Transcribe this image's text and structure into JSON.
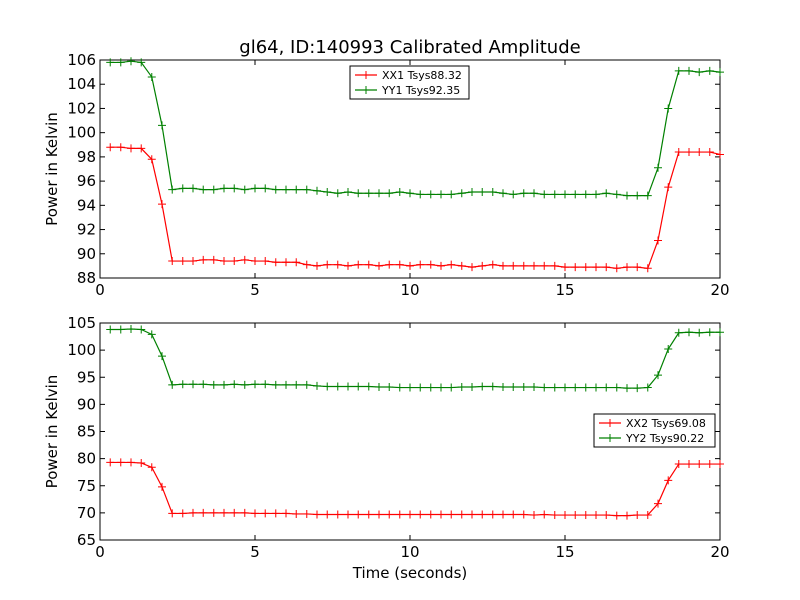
{
  "figure": {
    "title": "gl64, ID:140993 Calibrated Amplitude",
    "xlabel": "Time (seconds)"
  },
  "chart_data": [
    {
      "type": "line",
      "title": "gl64, ID:140993 Calibrated Amplitude",
      "xlabel": "",
      "ylabel": "Power in Kelvin",
      "xlim": [
        0,
        20
      ],
      "ylim": [
        88,
        106
      ],
      "xticks": [
        0,
        5,
        10,
        15,
        20
      ],
      "yticks": [
        88,
        90,
        92,
        94,
        96,
        98,
        100,
        102,
        104,
        106
      ],
      "legend_position": "top-center",
      "grid": false,
      "x": [
        0.33,
        0.67,
        1.0,
        1.33,
        1.67,
        2.0,
        2.33,
        2.67,
        3.0,
        3.33,
        3.67,
        4.0,
        4.33,
        4.67,
        5.0,
        5.33,
        5.67,
        6.0,
        6.33,
        6.67,
        7.0,
        7.33,
        7.67,
        8.0,
        8.33,
        8.67,
        9.0,
        9.33,
        9.67,
        10.0,
        10.33,
        10.67,
        11.0,
        11.33,
        11.67,
        12.0,
        12.33,
        12.67,
        13.0,
        13.33,
        13.67,
        14.0,
        14.33,
        14.67,
        15.0,
        15.33,
        15.67,
        16.0,
        16.33,
        16.67,
        17.0,
        17.33,
        17.67,
        18.0,
        18.33,
        18.67,
        19.0,
        19.33,
        19.67,
        20.0
      ],
      "series": [
        {
          "name": "XX1 Tsys88.32",
          "color": "#ff0000",
          "values": [
            98.8,
            98.8,
            98.7,
            98.7,
            97.8,
            94.1,
            89.4,
            89.4,
            89.4,
            89.5,
            89.5,
            89.4,
            89.4,
            89.5,
            89.4,
            89.4,
            89.3,
            89.3,
            89.3,
            89.1,
            89.0,
            89.1,
            89.1,
            89.0,
            89.1,
            89.1,
            89.0,
            89.1,
            89.1,
            89.0,
            89.1,
            89.1,
            89.0,
            89.1,
            89.0,
            88.9,
            89.0,
            89.1,
            89.0,
            89.0,
            89.0,
            89.0,
            89.0,
            89.0,
            88.9,
            88.9,
            88.9,
            88.9,
            88.9,
            88.8,
            88.9,
            88.9,
            88.8,
            91.1,
            95.5,
            98.4,
            98.4,
            98.4,
            98.4,
            98.2
          ]
        },
        {
          "name": "YY1 Tsys92.35",
          "color": "#008000",
          "values": [
            105.8,
            105.8,
            105.9,
            105.8,
            104.6,
            100.6,
            95.3,
            95.4,
            95.4,
            95.3,
            95.3,
            95.4,
            95.4,
            95.3,
            95.4,
            95.4,
            95.3,
            95.3,
            95.3,
            95.3,
            95.2,
            95.1,
            95.0,
            95.1,
            95.0,
            95.0,
            95.0,
            95.0,
            95.1,
            95.0,
            94.9,
            94.9,
            94.9,
            94.9,
            95.0,
            95.1,
            95.1,
            95.1,
            95.0,
            94.9,
            95.0,
            95.0,
            94.9,
            94.9,
            94.9,
            94.9,
            94.9,
            94.9,
            95.0,
            94.9,
            94.8,
            94.8,
            94.8,
            97.1,
            102.0,
            105.1,
            105.1,
            105.0,
            105.1,
            105.0
          ]
        }
      ]
    },
    {
      "type": "line",
      "title": "",
      "xlabel": "Time (seconds)",
      "ylabel": "Power in Kelvin",
      "xlim": [
        0,
        20
      ],
      "ylim": [
        65,
        105
      ],
      "xticks": [
        0,
        5,
        10,
        15,
        20
      ],
      "yticks": [
        65,
        70,
        75,
        80,
        85,
        90,
        95,
        100,
        105
      ],
      "legend_position": "center-right",
      "grid": false,
      "x": [
        0.33,
        0.67,
        1.0,
        1.33,
        1.67,
        2.0,
        2.33,
        2.67,
        3.0,
        3.33,
        3.67,
        4.0,
        4.33,
        4.67,
        5.0,
        5.33,
        5.67,
        6.0,
        6.33,
        6.67,
        7.0,
        7.33,
        7.67,
        8.0,
        8.33,
        8.67,
        9.0,
        9.33,
        9.67,
        10.0,
        10.33,
        10.67,
        11.0,
        11.33,
        11.67,
        12.0,
        12.33,
        12.67,
        13.0,
        13.33,
        13.67,
        14.0,
        14.33,
        14.67,
        15.0,
        15.33,
        15.67,
        16.0,
        16.33,
        16.67,
        17.0,
        17.33,
        17.67,
        18.0,
        18.33,
        18.67,
        19.0,
        19.33,
        19.67,
        20.0
      ],
      "series": [
        {
          "name": "XX2 Tsys69.08",
          "color": "#ff0000",
          "values": [
            79.3,
            79.3,
            79.3,
            79.2,
            78.4,
            74.8,
            69.9,
            69.9,
            70.0,
            70.0,
            70.0,
            70.0,
            70.0,
            70.0,
            69.9,
            69.9,
            69.9,
            69.9,
            69.8,
            69.8,
            69.7,
            69.7,
            69.7,
            69.7,
            69.7,
            69.7,
            69.7,
            69.7,
            69.7,
            69.7,
            69.7,
            69.7,
            69.7,
            69.7,
            69.7,
            69.7,
            69.7,
            69.7,
            69.7,
            69.7,
            69.7,
            69.6,
            69.7,
            69.6,
            69.6,
            69.6,
            69.6,
            69.6,
            69.6,
            69.5,
            69.5,
            69.6,
            69.6,
            71.7,
            76.0,
            79.0,
            79.0,
            79.0,
            79.0,
            79.0
          ]
        },
        {
          "name": "YY2 Tsys90.22",
          "color": "#008000",
          "values": [
            103.8,
            103.8,
            103.9,
            103.8,
            102.9,
            98.9,
            93.6,
            93.7,
            93.7,
            93.7,
            93.6,
            93.6,
            93.7,
            93.6,
            93.7,
            93.7,
            93.6,
            93.6,
            93.6,
            93.6,
            93.4,
            93.3,
            93.3,
            93.3,
            93.3,
            93.3,
            93.2,
            93.2,
            93.1,
            93.1,
            93.1,
            93.1,
            93.1,
            93.1,
            93.2,
            93.2,
            93.3,
            93.3,
            93.2,
            93.2,
            93.2,
            93.2,
            93.1,
            93.1,
            93.1,
            93.1,
            93.1,
            93.1,
            93.1,
            93.1,
            93.0,
            93.0,
            93.1,
            95.4,
            100.2,
            103.2,
            103.3,
            103.2,
            103.3,
            103.3
          ]
        }
      ]
    }
  ]
}
